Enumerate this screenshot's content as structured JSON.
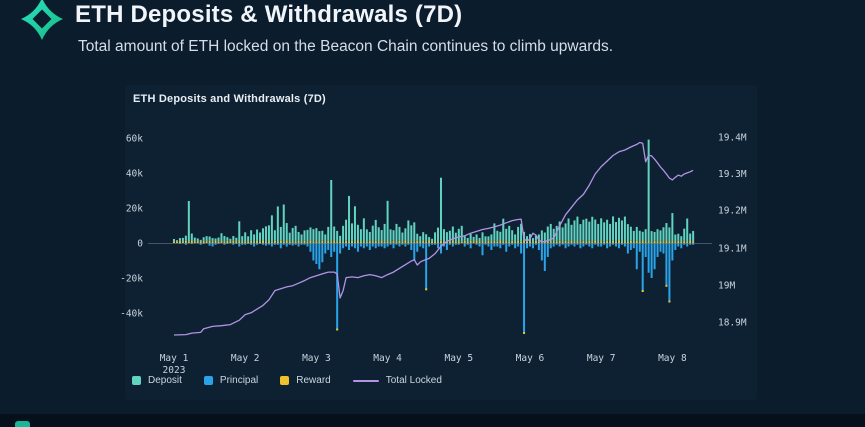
{
  "header": {
    "logo_icon": "four-point-star-icon",
    "title": "ETH Deposits & Withdrawals (7D)",
    "subtitle": "Total amount of ETH locked on the Beacon Chain continues to climb upwards."
  },
  "chart_panel": {
    "title": "ETH Deposits and Withdrawals (7D)",
    "background": "#0d2133"
  },
  "colors": {
    "deposit": "#62d3bf",
    "principal": "#2aa3e8",
    "reward": "#eec12d",
    "total_locked": "#b393e3",
    "zero_line": "#42536a",
    "logo_teal": "#2ae4c5",
    "logo_green": "#17b87f"
  },
  "chart_data": {
    "type": "bar",
    "subtype": "hourly stacked bars with overlaid line (dual axis)",
    "title": "ETH Deposits and Withdrawals (7D)",
    "x_start": "May 1 2023 00:00",
    "hours": 176,
    "left_axis": {
      "unit": "k ETH",
      "ticks": [
        "60k",
        "40k",
        "20k",
        "0",
        "-20k",
        "-40k"
      ],
      "tick_values_k": [
        60,
        40,
        20,
        0,
        -20,
        -40
      ]
    },
    "right_axis": {
      "unit": "M ETH",
      "ticks": [
        "19.4M",
        "19.3M",
        "19.2M",
        "19.1M",
        "19M",
        "18.9M"
      ],
      "tick_values_m": [
        19.4,
        19.3,
        19.2,
        19.1,
        19.0,
        18.9
      ]
    },
    "x_ticks": [
      {
        "label": "May 1",
        "sub": "2023"
      },
      {
        "label": "May 2",
        "sub": ""
      },
      {
        "label": "May 3",
        "sub": ""
      },
      {
        "label": "May 4",
        "sub": ""
      },
      {
        "label": "May 5",
        "sub": ""
      },
      {
        "label": "May 6",
        "sub": ""
      },
      {
        "label": "May 7",
        "sub": ""
      },
      {
        "label": "May 8",
        "sub": ""
      }
    ],
    "legend": [
      {
        "label": "Deposit",
        "swatch": "square",
        "color": "#62d3bf"
      },
      {
        "label": "Principal",
        "swatch": "square",
        "color": "#2aa3e8"
      },
      {
        "label": "Reward",
        "swatch": "square",
        "color": "#eec12d"
      },
      {
        "label": "Total Locked",
        "swatch": "line",
        "color": "#b393e3"
      }
    ],
    "series": {
      "deposit_k": [
        1.2,
        0.8,
        1.5,
        2,
        3,
        23,
        4,
        2.2,
        1.5,
        1,
        2,
        3,
        2.5,
        1.8,
        1.2,
        2.2,
        4.5,
        3.2,
        2,
        1.5,
        2.8,
        2,
        11,
        3,
        5,
        3,
        6,
        4,
        6.5,
        5,
        7,
        8.6,
        9,
        15,
        6,
        20,
        8,
        21,
        10,
        5,
        7.5,
        9,
        5,
        4,
        6,
        6.5,
        7.5,
        7,
        7.4,
        6,
        5.7,
        4,
        8,
        35,
        8,
        6,
        3,
        9,
        12,
        26,
        10,
        20,
        9,
        7,
        13,
        7,
        5,
        9,
        12,
        8,
        6,
        10,
        23,
        7,
        6,
        10,
        8,
        5,
        7,
        12,
        9,
        11,
        4,
        3,
        5,
        4,
        2,
        1.5,
        5,
        8,
        36,
        7,
        5,
        6,
        8,
        5,
        7,
        9,
        3,
        2,
        4,
        2.5,
        3.5,
        2,
        5,
        3,
        2.5,
        4,
        10,
        6,
        5,
        13,
        7,
        9,
        6,
        4,
        8,
        10,
        5,
        3,
        4,
        2,
        3,
        4,
        6,
        5,
        8,
        10,
        7,
        9,
        11,
        8,
        10,
        13,
        9,
        12,
        14,
        10,
        12,
        13,
        11,
        14,
        12,
        10,
        13,
        11,
        12,
        10,
        14,
        11,
        13,
        12,
        14,
        10,
        8,
        6,
        8,
        6,
        5,
        7,
        58,
        6,
        5,
        7,
        6,
        8,
        10,
        8,
        16,
        4,
        4,
        3,
        7,
        13,
        4,
        6,
        3,
        5
      ],
      "principal_k": [
        0,
        0,
        -0.5,
        0,
        -1,
        0,
        -0.5,
        0,
        0,
        -1,
        -0.5,
        0,
        -1.5,
        -2,
        -1,
        -0.5,
        0,
        -1,
        -0.5,
        0,
        -1,
        -0.5,
        -2,
        -1,
        -1,
        -0.5,
        -1,
        -2,
        -1,
        -0.5,
        -1,
        -1.5,
        -1,
        -2,
        -1,
        -1,
        -3,
        -1,
        -2,
        -1,
        -1.5,
        -1,
        -2,
        -1,
        -1,
        -2,
        -5,
        -10,
        -12,
        -15,
        -11,
        -6,
        -4,
        -8,
        -5,
        -50,
        -6,
        -3,
        -2,
        -4,
        -2,
        -3,
        -5,
        -2,
        -3,
        -2,
        -4,
        -2,
        -3,
        -2,
        -2,
        -3,
        -2,
        -1,
        -3,
        -1,
        -2,
        -1,
        -2,
        -1,
        -4,
        -10,
        -5,
        -2,
        -3,
        -27,
        -2,
        -1,
        -1,
        -3,
        -6,
        -2,
        -4,
        -1,
        -2,
        -1,
        -1,
        0,
        -2,
        -1,
        -3,
        0,
        -1,
        -2,
        -7,
        -1,
        -2,
        -4,
        -2,
        -2,
        -3,
        -1,
        -5,
        -2,
        -1,
        -3,
        -2,
        -6,
        -52,
        -3,
        -2,
        -3,
        -1,
        -4,
        -10,
        -16,
        -8,
        -3,
        -2,
        -1,
        -2,
        -1,
        -3,
        -2,
        -1,
        -2,
        -1,
        -3,
        -2,
        -1,
        -2,
        -3,
        -1,
        -2,
        -2,
        -1,
        -3,
        -2,
        -1,
        -2,
        -3,
        -1,
        -2,
        -6,
        -4,
        -3,
        -15,
        -5,
        -28,
        -8,
        -17,
        -20,
        -15,
        -8,
        -5,
        -6,
        -25,
        -34,
        -10,
        -4,
        -2,
        -3,
        -1,
        -2,
        -1,
        -1
      ],
      "reward_pattern_k": [
        1.1,
        0.8,
        1.3,
        0.9,
        1.2,
        1.0,
        1.4,
        0.9
      ],
      "total_locked_m_points": [
        [
          0,
          18.865
        ],
        [
          4,
          18.866
        ],
        [
          6,
          18.87
        ],
        [
          9,
          18.872
        ],
        [
          10,
          18.882
        ],
        [
          13,
          18.888
        ],
        [
          16,
          18.89
        ],
        [
          19,
          18.893
        ],
        [
          22,
          18.905
        ],
        [
          24,
          18.92
        ],
        [
          26,
          18.925
        ],
        [
          28,
          18.935
        ],
        [
          30,
          18.945
        ],
        [
          32,
          18.96
        ],
        [
          34,
          18.985
        ],
        [
          36,
          18.99
        ],
        [
          38,
          18.995
        ],
        [
          40,
          18.998
        ],
        [
          42,
          19.005
        ],
        [
          44,
          19.012
        ],
        [
          46,
          19.02
        ],
        [
          48,
          19.025
        ],
        [
          50,
          19.03
        ],
        [
          52,
          19.035
        ],
        [
          54,
          19.035
        ],
        [
          55,
          19.03
        ],
        [
          56,
          18.965
        ],
        [
          57,
          18.985
        ],
        [
          58,
          19.02
        ],
        [
          60,
          19.022
        ],
        [
          62,
          19.02
        ],
        [
          64,
          19.025
        ],
        [
          66,
          19.028
        ],
        [
          68,
          19.025
        ],
        [
          70,
          19.02
        ],
        [
          72,
          19.028
        ],
        [
          74,
          19.035
        ],
        [
          76,
          19.045
        ],
        [
          78,
          19.055
        ],
        [
          80,
          19.065
        ],
        [
          81,
          19.068
        ],
        [
          82,
          19.054
        ],
        [
          83,
          19.062
        ],
        [
          84,
          19.066
        ],
        [
          86,
          19.072
        ],
        [
          88,
          19.085
        ],
        [
          90,
          19.105
        ],
        [
          92,
          19.118
        ],
        [
          94,
          19.125
        ],
        [
          96,
          19.13
        ],
        [
          98,
          19.133
        ],
        [
          100,
          19.14
        ],
        [
          102,
          19.145
        ],
        [
          104,
          19.15
        ],
        [
          106,
          19.153
        ],
        [
          108,
          19.157
        ],
        [
          110,
          19.162
        ],
        [
          112,
          19.168
        ],
        [
          114,
          19.174
        ],
        [
          116,
          19.177
        ],
        [
          117,
          19.178
        ],
        [
          118,
          19.125
        ],
        [
          119,
          19.118
        ],
        [
          120,
          19.125
        ],
        [
          121,
          19.14
        ],
        [
          122,
          19.135
        ],
        [
          123,
          19.122
        ],
        [
          124,
          19.116
        ],
        [
          126,
          19.12
        ],
        [
          128,
          19.127
        ],
        [
          130,
          19.16
        ],
        [
          132,
          19.19
        ],
        [
          134,
          19.21
        ],
        [
          136,
          19.23
        ],
        [
          138,
          19.245
        ],
        [
          140,
          19.27
        ],
        [
          142,
          19.3
        ],
        [
          144,
          19.32
        ],
        [
          146,
          19.335
        ],
        [
          148,
          19.35
        ],
        [
          150,
          19.36
        ],
        [
          152,
          19.365
        ],
        [
          154,
          19.373
        ],
        [
          156,
          19.38
        ],
        [
          157,
          19.385
        ],
        [
          158,
          19.383
        ],
        [
          159,
          19.333
        ],
        [
          160,
          19.351
        ],
        [
          161,
          19.349
        ],
        [
          162,
          19.34
        ],
        [
          163,
          19.33
        ],
        [
          164,
          19.319
        ],
        [
          165,
          19.31
        ],
        [
          166,
          19.3
        ],
        [
          167,
          19.289
        ],
        [
          168,
          19.284
        ],
        [
          169,
          19.291
        ],
        [
          170,
          19.297
        ],
        [
          171,
          19.294
        ],
        [
          172,
          19.3
        ],
        [
          173,
          19.303
        ],
        [
          174,
          19.306
        ],
        [
          175,
          19.31
        ]
      ]
    }
  }
}
